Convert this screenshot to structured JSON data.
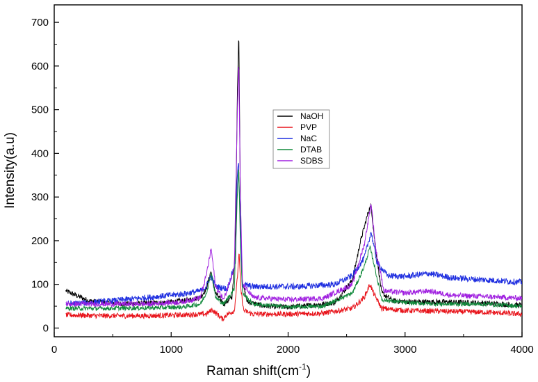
{
  "chart_data": {
    "type": "line",
    "title": "",
    "xlabel": "Raman shift(cm",
    "xlabel_superscript": "-1",
    "xlabel_suffix": ")",
    "ylabel": "Intensity(a.u)",
    "xlim": [
      0,
      4000
    ],
    "ylim": [
      -20,
      740
    ],
    "x_ticks": [
      0,
      1000,
      2000,
      3000,
      4000
    ],
    "y_ticks": [
      0,
      100,
      200,
      300,
      400,
      500,
      600,
      700
    ],
    "grid": false,
    "legend_position": "center",
    "series": [
      {
        "name": "NaOH",
        "color": "#000000",
        "points": [
          [
            100,
            85
          ],
          [
            300,
            62
          ],
          [
            600,
            55
          ],
          [
            900,
            58
          ],
          [
            1100,
            62
          ],
          [
            1250,
            70
          ],
          [
            1300,
            90
          ],
          [
            1340,
            130
          ],
          [
            1380,
            80
          ],
          [
            1450,
            55
          ],
          [
            1520,
            70
          ],
          [
            1550,
            180
          ],
          [
            1565,
            520
          ],
          [
            1578,
            685
          ],
          [
            1590,
            340
          ],
          [
            1605,
            110
          ],
          [
            1650,
            60
          ],
          [
            1800,
            50
          ],
          [
            2000,
            48
          ],
          [
            2200,
            52
          ],
          [
            2400,
            58
          ],
          [
            2550,
            110
          ],
          [
            2620,
            200
          ],
          [
            2690,
            270
          ],
          [
            2710,
            280
          ],
          [
            2740,
            200
          ],
          [
            2800,
            80
          ],
          [
            2900,
            62
          ],
          [
            3100,
            60
          ],
          [
            3300,
            60
          ],
          [
            3600,
            58
          ],
          [
            3800,
            55
          ],
          [
            4000,
            52
          ]
        ],
        "noise": 6
      },
      {
        "name": "PVP",
        "color": "#e8141b",
        "points": [
          [
            100,
            30
          ],
          [
            400,
            28
          ],
          [
            800,
            28
          ],
          [
            1100,
            30
          ],
          [
            1300,
            32
          ],
          [
            1350,
            42
          ],
          [
            1400,
            30
          ],
          [
            1440,
            20
          ],
          [
            1470,
            30
          ],
          [
            1540,
            40
          ],
          [
            1565,
            110
          ],
          [
            1580,
            175
          ],
          [
            1595,
            90
          ],
          [
            1620,
            40
          ],
          [
            1700,
            32
          ],
          [
            2000,
            32
          ],
          [
            2300,
            34
          ],
          [
            2550,
            45
          ],
          [
            2650,
            70
          ],
          [
            2700,
            100
          ],
          [
            2730,
            80
          ],
          [
            2800,
            45
          ],
          [
            3000,
            40
          ],
          [
            3400,
            38
          ],
          [
            3700,
            36
          ],
          [
            4000,
            32
          ]
        ],
        "noise": 6
      },
      {
        "name": "NaC",
        "color": "#1f2fe0",
        "points": [
          [
            100,
            55
          ],
          [
            400,
            60
          ],
          [
            800,
            70
          ],
          [
            1100,
            78
          ],
          [
            1250,
            85
          ],
          [
            1300,
            95
          ],
          [
            1340,
            120
          ],
          [
            1380,
            95
          ],
          [
            1480,
            90
          ],
          [
            1550,
            150
          ],
          [
            1565,
            350
          ],
          [
            1575,
            380
          ],
          [
            1590,
            250
          ],
          [
            1610,
            100
          ],
          [
            1700,
            95
          ],
          [
            1900,
            95
          ],
          [
            2100,
            95
          ],
          [
            2400,
            100
          ],
          [
            2550,
            120
          ],
          [
            2650,
            160
          ],
          [
            2710,
            220
          ],
          [
            2760,
            150
          ],
          [
            2850,
            120
          ],
          [
            3000,
            118
          ],
          [
            3200,
            125
          ],
          [
            3400,
            115
          ],
          [
            3700,
            110
          ],
          [
            4000,
            105
          ]
        ],
        "noise": 7
      },
      {
        "name": "DTAB",
        "color": "#128a3c",
        "points": [
          [
            100,
            45
          ],
          [
            400,
            45
          ],
          [
            800,
            46
          ],
          [
            1100,
            48
          ],
          [
            1250,
            55
          ],
          [
            1300,
            80
          ],
          [
            1345,
            125
          ],
          [
            1380,
            70
          ],
          [
            1450,
            55
          ],
          [
            1540,
            90
          ],
          [
            1565,
            300
          ],
          [
            1578,
            370
          ],
          [
            1592,
            190
          ],
          [
            1610,
            80
          ],
          [
            1700,
            55
          ],
          [
            2000,
            48
          ],
          [
            2300,
            50
          ],
          [
            2550,
            80
          ],
          [
            2650,
            140
          ],
          [
            2700,
            185
          ],
          [
            2740,
            140
          ],
          [
            2800,
            65
          ],
          [
            3000,
            58
          ],
          [
            3300,
            55
          ],
          [
            3700,
            55
          ],
          [
            4000,
            50
          ]
        ],
        "noise": 5
      },
      {
        "name": "SDBS",
        "color": "#a020e0",
        "points": [
          [
            100,
            55
          ],
          [
            400,
            55
          ],
          [
            800,
            55
          ],
          [
            1100,
            60
          ],
          [
            1250,
            70
          ],
          [
            1300,
            120
          ],
          [
            1342,
            182
          ],
          [
            1380,
            95
          ],
          [
            1450,
            65
          ],
          [
            1540,
            140
          ],
          [
            1565,
            480
          ],
          [
            1578,
            615
          ],
          [
            1592,
            300
          ],
          [
            1610,
            100
          ],
          [
            1700,
            70
          ],
          [
            2000,
            65
          ],
          [
            2300,
            68
          ],
          [
            2550,
            100
          ],
          [
            2650,
            190
          ],
          [
            2710,
            285
          ],
          [
            2750,
            180
          ],
          [
            2820,
            85
          ],
          [
            3000,
            80
          ],
          [
            3200,
            85
          ],
          [
            3400,
            75
          ],
          [
            3700,
            72
          ],
          [
            4000,
            68
          ]
        ],
        "noise": 6
      }
    ]
  }
}
